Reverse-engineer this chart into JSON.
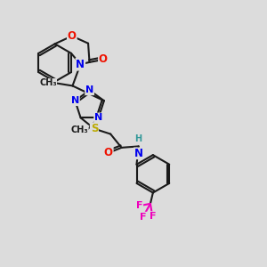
{
  "bg_color": "#dcdcdc",
  "bond_color": "#1a1a1a",
  "bond_width": 1.5,
  "atom_colors": {
    "N": "#0000ee",
    "O": "#ee1100",
    "S": "#bbaa00",
    "F": "#ee00bb",
    "H": "#339999"
  },
  "figsize": [
    3.0,
    3.0
  ],
  "dpi": 100
}
